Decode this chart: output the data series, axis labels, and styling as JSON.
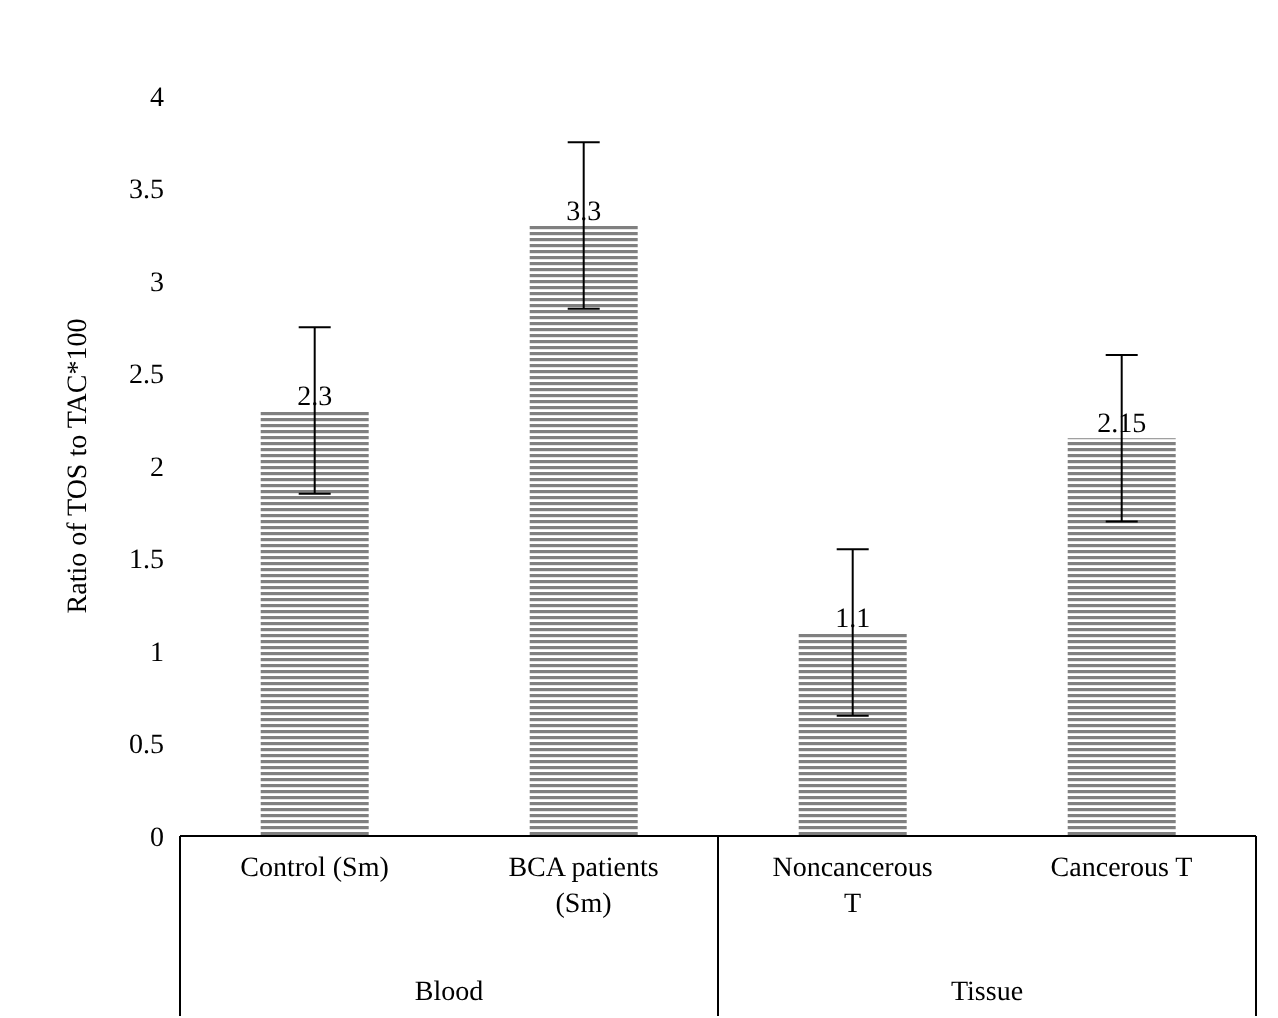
{
  "chart_data": {
    "type": "bar",
    "ylabel": "Ratio of TOS to TAC*100",
    "categories": [
      "Control (Sm)",
      "BCA patients (Sm)",
      "Noncancerous T",
      "Cancerous T"
    ],
    "values": [
      2.3,
      3.3,
      1.1,
      2.15
    ],
    "errors": [
      0.45,
      0.45,
      0.45,
      0.45
    ],
    "color": "#808080",
    "data_labels": true,
    "ylim": [
      0,
      4
    ],
    "yticks": [
      0,
      0.5,
      1,
      1.5,
      2,
      2.5,
      3,
      3.5,
      4
    ],
    "grid": false,
    "legend": false,
    "annotations": [
      "Blood",
      "Tissue"
    ]
  }
}
